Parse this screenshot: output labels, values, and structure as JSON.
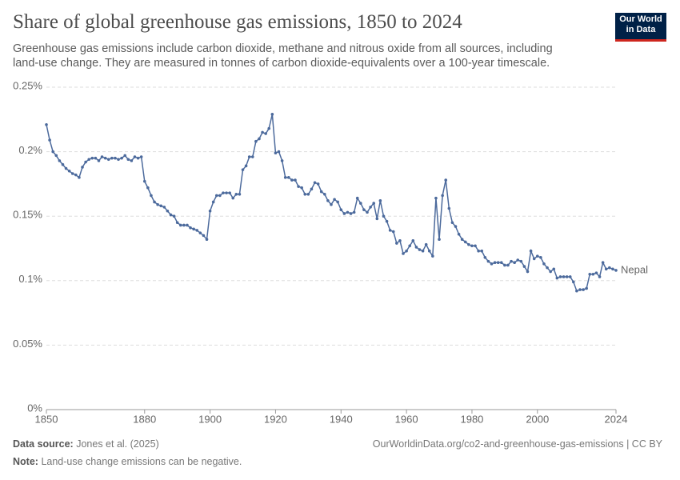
{
  "chart_data": {
    "type": "line",
    "title": "Share of global greenhouse gas emissions, 1850 to 2024",
    "subtitle": "Greenhouse gas emissions include carbon dioxide, methane and nitrous oxide from all sources, including land-use change. They are measured in tonnes of carbon dioxide-equivalents over a 100-year timescale.",
    "x": [
      1850,
      1851,
      1852,
      1853,
      1854,
      1855,
      1856,
      1857,
      1858,
      1859,
      1860,
      1861,
      1862,
      1863,
      1864,
      1865,
      1866,
      1867,
      1868,
      1869,
      1870,
      1871,
      1872,
      1873,
      1874,
      1875,
      1876,
      1877,
      1878,
      1879,
      1880,
      1881,
      1882,
      1883,
      1884,
      1885,
      1886,
      1887,
      1888,
      1889,
      1890,
      1891,
      1892,
      1893,
      1894,
      1895,
      1896,
      1897,
      1898,
      1899,
      1900,
      1901,
      1902,
      1903,
      1904,
      1905,
      1906,
      1907,
      1908,
      1909,
      1910,
      1911,
      1912,
      1913,
      1914,
      1915,
      1916,
      1917,
      1918,
      1919,
      1920,
      1921,
      1922,
      1923,
      1924,
      1925,
      1926,
      1927,
      1928,
      1929,
      1930,
      1931,
      1932,
      1933,
      1934,
      1935,
      1936,
      1937,
      1938,
      1939,
      1940,
      1941,
      1942,
      1943,
      1944,
      1945,
      1946,
      1947,
      1948,
      1949,
      1950,
      1951,
      1952,
      1953,
      1954,
      1955,
      1956,
      1957,
      1958,
      1959,
      1960,
      1961,
      1962,
      1963,
      1964,
      1965,
      1966,
      1967,
      1968,
      1969,
      1970,
      1971,
      1972,
      1973,
      1974,
      1975,
      1976,
      1977,
      1978,
      1979,
      1980,
      1981,
      1982,
      1983,
      1984,
      1985,
      1986,
      1987,
      1988,
      1989,
      1990,
      1991,
      1992,
      1993,
      1994,
      1995,
      1996,
      1997,
      1998,
      1999,
      2000,
      2001,
      2002,
      2003,
      2004,
      2005,
      2006,
      2007,
      2008,
      2009,
      2010,
      2011,
      2012,
      2013,
      2014,
      2015,
      2016,
      2017,
      2018,
      2019,
      2020,
      2021,
      2022,
      2023,
      2024
    ],
    "series": [
      {
        "name": "Nepal",
        "color": "#4c6a9c",
        "values": [
          0.221,
          0.209,
          0.2,
          0.197,
          0.193,
          0.19,
          0.187,
          0.185,
          0.183,
          0.182,
          0.18,
          0.188,
          0.192,
          0.194,
          0.195,
          0.195,
          0.193,
          0.196,
          0.195,
          0.194,
          0.195,
          0.195,
          0.194,
          0.195,
          0.197,
          0.194,
          0.193,
          0.196,
          0.195,
          0.196,
          0.177,
          0.172,
          0.166,
          0.161,
          0.159,
          0.158,
          0.157,
          0.154,
          0.151,
          0.15,
          0.145,
          0.143,
          0.143,
          0.143,
          0.141,
          0.14,
          0.139,
          0.137,
          0.135,
          0.132,
          0.154,
          0.161,
          0.166,
          0.166,
          0.168,
          0.168,
          0.168,
          0.164,
          0.167,
          0.167,
          0.186,
          0.189,
          0.196,
          0.196,
          0.208,
          0.21,
          0.215,
          0.214,
          0.218,
          0.229,
          0.199,
          0.2,
          0.193,
          0.18,
          0.18,
          0.178,
          0.178,
          0.173,
          0.172,
          0.167,
          0.167,
          0.171,
          0.176,
          0.175,
          0.169,
          0.167,
          0.162,
          0.159,
          0.163,
          0.161,
          0.155,
          0.152,
          0.153,
          0.152,
          0.153,
          0.164,
          0.16,
          0.155,
          0.153,
          0.157,
          0.16,
          0.148,
          0.162,
          0.15,
          0.146,
          0.139,
          0.138,
          0.129,
          0.131,
          0.121,
          0.123,
          0.127,
          0.131,
          0.126,
          0.124,
          0.123,
          0.128,
          0.123,
          0.119,
          0.164,
          0.132,
          0.166,
          0.178,
          0.156,
          0.145,
          0.142,
          0.136,
          0.132,
          0.13,
          0.128,
          0.127,
          0.127,
          0.123,
          0.123,
          0.118,
          0.115,
          0.113,
          0.114,
          0.114,
          0.114,
          0.112,
          0.112,
          0.115,
          0.114,
          0.116,
          0.115,
          0.111,
          0.107,
          0.123,
          0.117,
          0.119,
          0.118,
          0.113,
          0.11,
          0.107,
          0.109,
          0.102,
          0.103,
          0.103,
          0.103,
          0.103,
          0.099,
          0.092,
          0.093,
          0.093,
          0.094,
          0.105,
          0.105,
          0.106,
          0.103,
          0.114,
          0.109,
          0.11,
          0.109,
          0.108
        ]
      }
    ],
    "xlim": [
      1850,
      2024
    ],
    "xticks": [
      1850,
      1880,
      1900,
      1920,
      1940,
      1960,
      1980,
      2000,
      2024
    ],
    "ylim": [
      0,
      0.25
    ],
    "yticks": [
      {
        "value": 0,
        "label": "0%"
      },
      {
        "value": 0.05,
        "label": "0.05%"
      },
      {
        "value": 0.1,
        "label": "0.1%"
      },
      {
        "value": 0.15,
        "label": "0.15%"
      },
      {
        "value": 0.2,
        "label": "0.2%"
      },
      {
        "value": 0.25,
        "label": "0.25%"
      }
    ],
    "grid": true
  },
  "logo": [
    "Our World",
    "in Data"
  ],
  "footer": {
    "source_label": "Data source:",
    "source": "Jones et al. (2025)",
    "url": "OurWorldinData.org/co2-and-greenhouse-gas-emissions | CC BY",
    "note_label": "Note:",
    "note": "Land-use change emissions can be negative."
  }
}
